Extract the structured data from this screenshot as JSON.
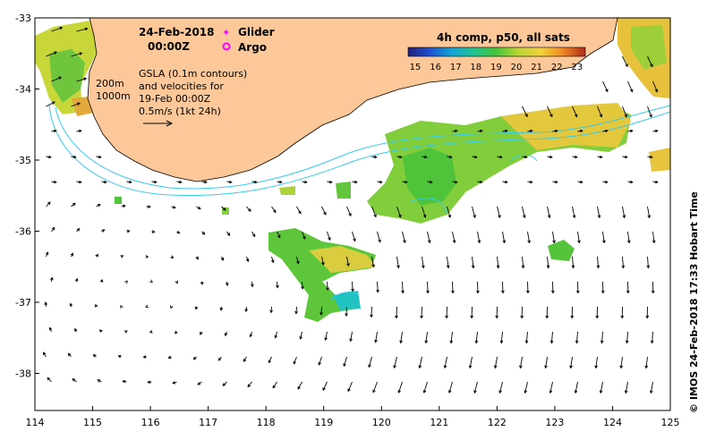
{
  "header": {
    "date": "24-Feb-2018",
    "time": "00:00Z"
  },
  "legend": {
    "glider_label": "Glider",
    "argo_label": "Argo",
    "glider_color": "#ff00ff",
    "argo_color": "#ff00ff"
  },
  "colorbar": {
    "title": "4h comp, p50, all sats",
    "ticks": [
      "15",
      "16",
      "17",
      "18",
      "19",
      "20",
      "21",
      "22",
      "23"
    ]
  },
  "annotation": {
    "line1": "GSLA (0.1m contours)",
    "line2": "and velocities for",
    "line3": "19-Feb 00:00Z",
    "line4": "0.5m/s (1kt 24h)"
  },
  "depth_labels": {
    "shallow": "200m",
    "deep": "1000m"
  },
  "axes": {
    "x_ticks": [
      "114",
      "115",
      "116",
      "117",
      "118",
      "119",
      "120",
      "121",
      "122",
      "123",
      "124",
      "125"
    ],
    "y_ticks": [
      "-33",
      "-34",
      "-35",
      "-36",
      "-37",
      "-38"
    ]
  },
  "credit": "© IMOS 24-Feb-2018 17:33 Hobart Time",
  "colors": {
    "land": "#fcc89a",
    "contour": "#33ccee",
    "frame": "#000000",
    "arrow": "#000000"
  }
}
